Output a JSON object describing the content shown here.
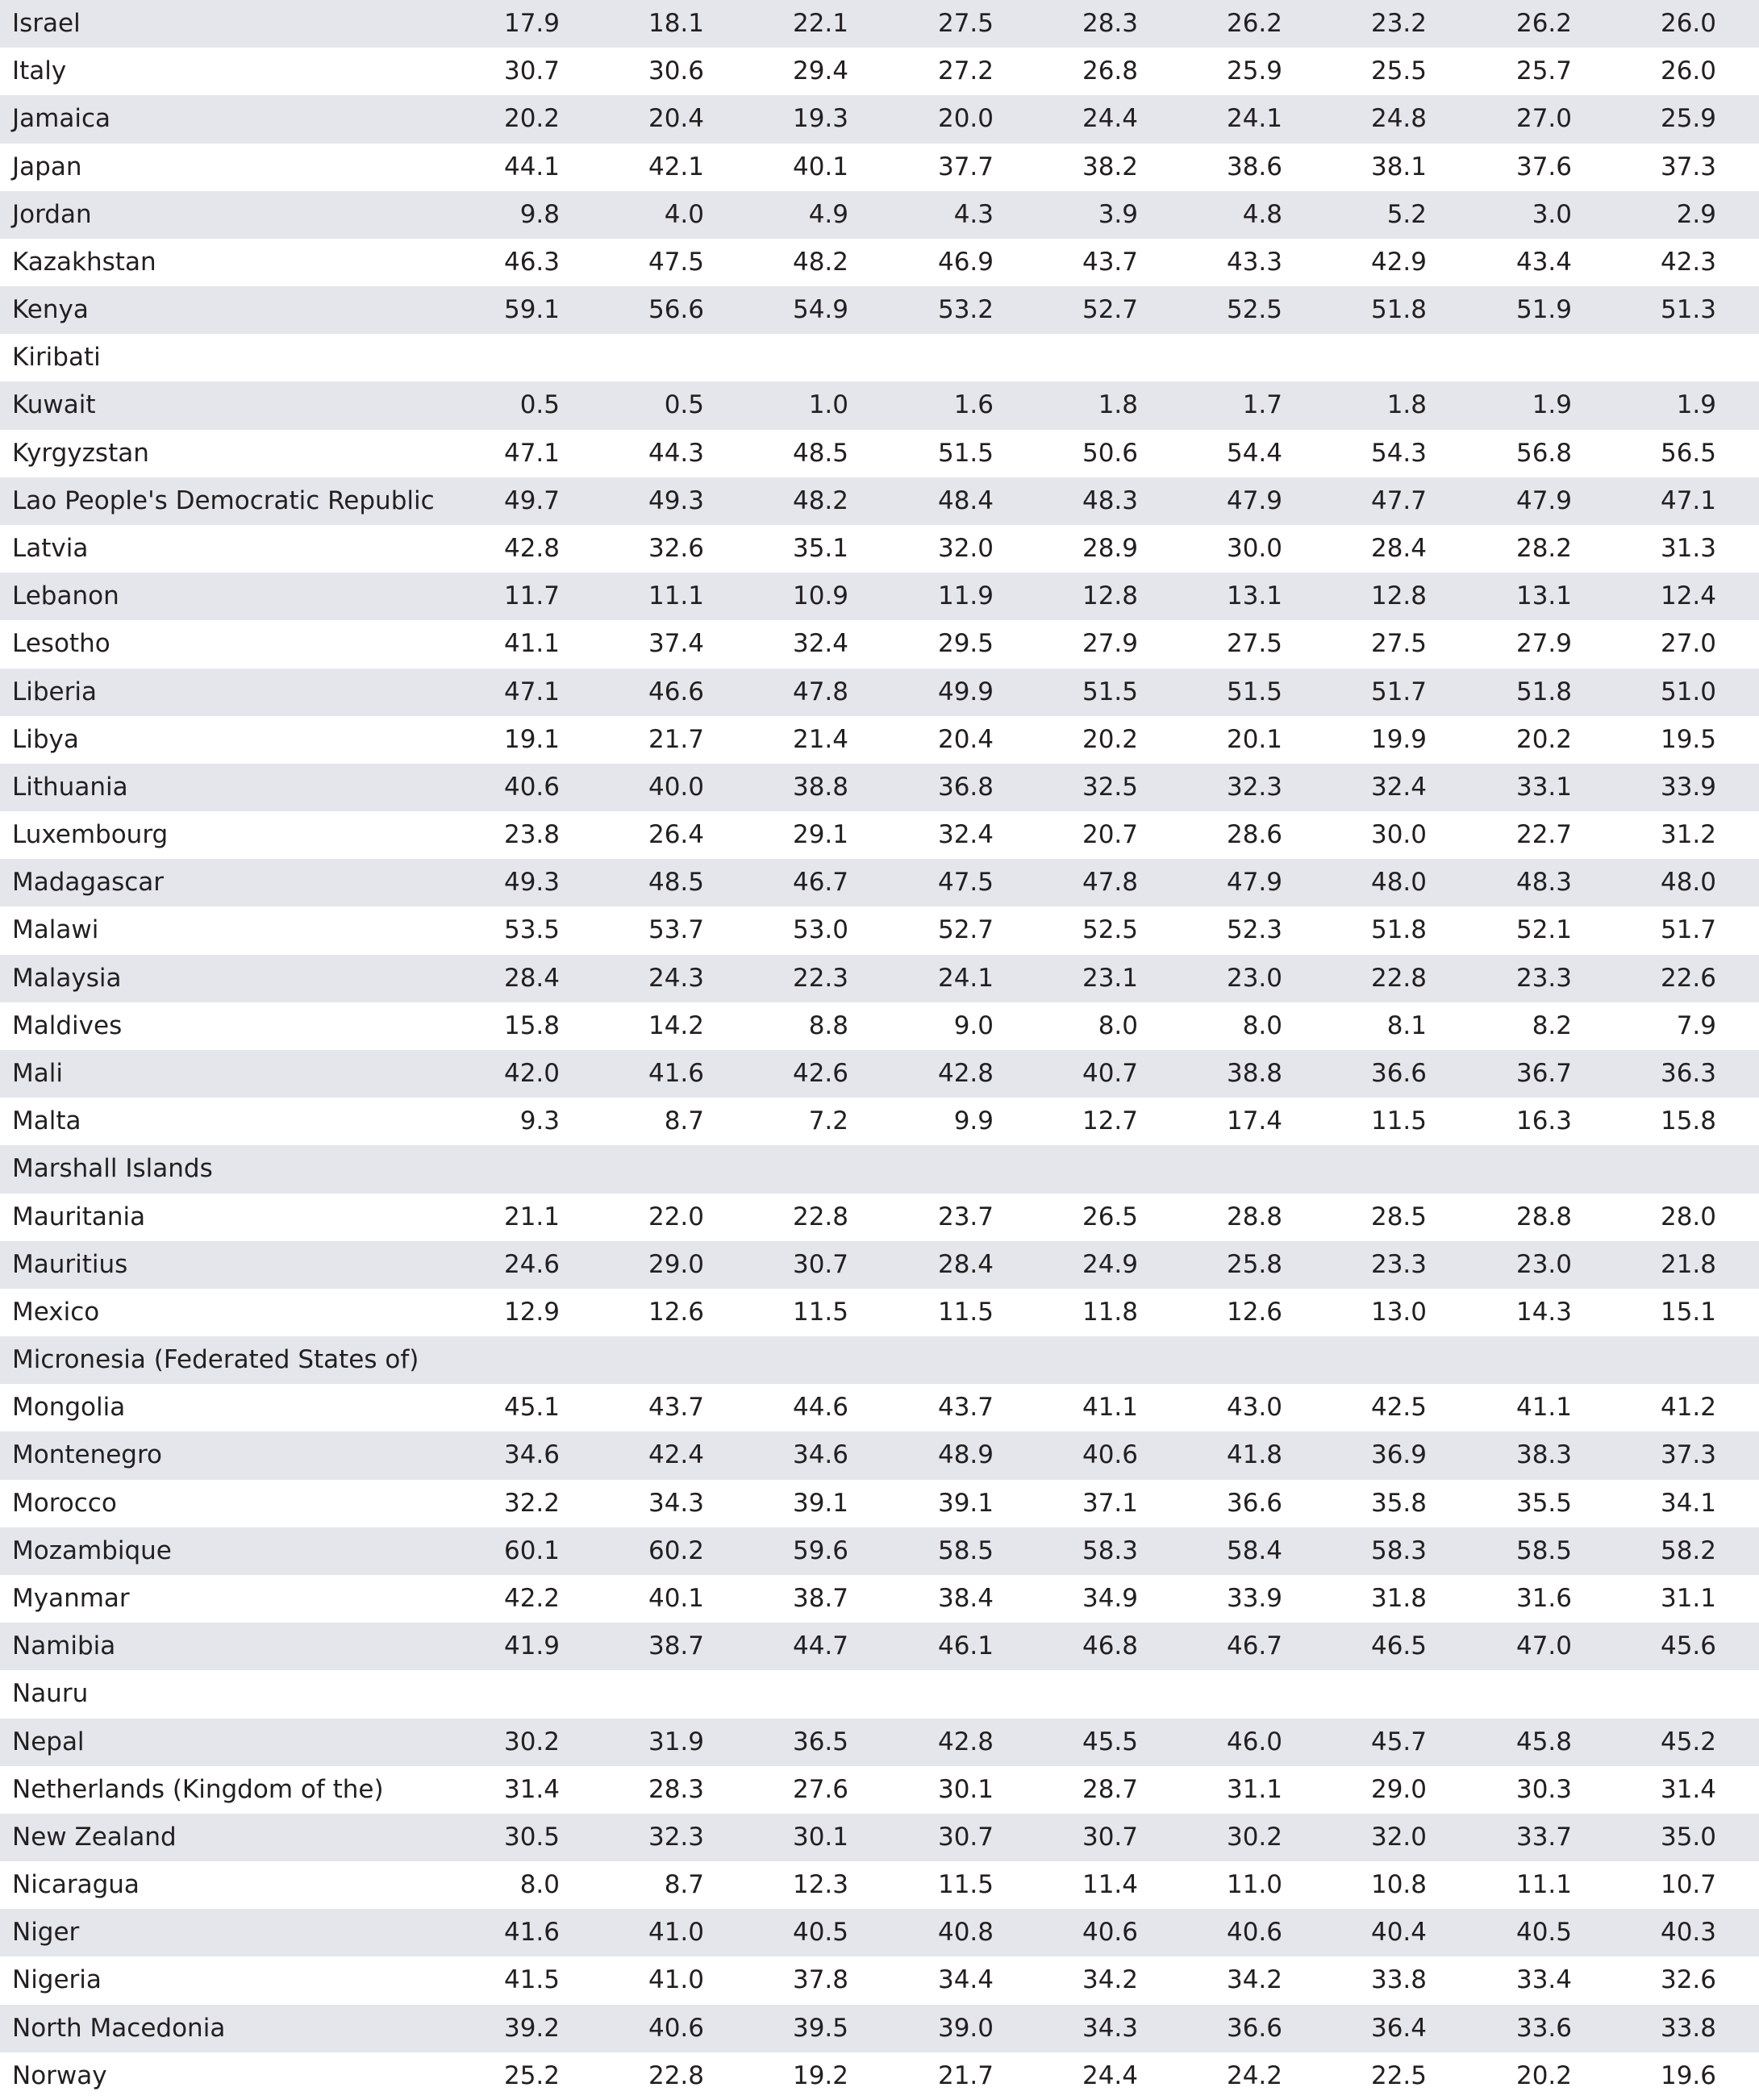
{
  "table": {
    "rows": [
      [
        "Israel",
        "17.9",
        "18.1",
        "22.1",
        "27.5",
        "28.3",
        "26.2",
        "23.2",
        "26.2",
        "26.0"
      ],
      [
        "Italy",
        "30.7",
        "30.6",
        "29.4",
        "27.2",
        "26.8",
        "25.9",
        "25.5",
        "25.7",
        "26.0"
      ],
      [
        "Jamaica",
        "20.2",
        "20.4",
        "19.3",
        "20.0",
        "24.4",
        "24.1",
        "24.8",
        "27.0",
        "25.9"
      ],
      [
        "Japan",
        "44.1",
        "42.1",
        "40.1",
        "37.7",
        "38.2",
        "38.6",
        "38.1",
        "37.6",
        "37.3"
      ],
      [
        "Jordan",
        "9.8",
        "4.0",
        "4.9",
        "4.3",
        "3.9",
        "4.8",
        "5.2",
        "3.0",
        "2.9"
      ],
      [
        "Kazakhstan",
        "46.3",
        "47.5",
        "48.2",
        "46.9",
        "43.7",
        "43.3",
        "42.9",
        "43.4",
        "42.3"
      ],
      [
        "Kenya",
        "59.1",
        "56.6",
        "54.9",
        "53.2",
        "52.7",
        "52.5",
        "51.8",
        "51.9",
        "51.3"
      ],
      [
        "Kiribati"
      ],
      [
        "Kuwait",
        "0.5",
        "0.5",
        "1.0",
        "1.6",
        "1.8",
        "1.7",
        "1.8",
        "1.9",
        "1.9"
      ],
      [
        "Kyrgyzstan",
        "47.1",
        "44.3",
        "48.5",
        "51.5",
        "50.6",
        "54.4",
        "54.3",
        "56.8",
        "56.5"
      ],
      [
        "Lao People's Democratic Republic",
        "49.7",
        "49.3",
        "48.2",
        "48.4",
        "48.3",
        "47.9",
        "47.7",
        "47.9",
        "47.1"
      ],
      [
        "Latvia",
        "42.8",
        "32.6",
        "35.1",
        "32.0",
        "28.9",
        "30.0",
        "28.4",
        "28.2",
        "31.3"
      ],
      [
        "Lebanon",
        "11.7",
        "11.1",
        "10.9",
        "11.9",
        "12.8",
        "13.1",
        "12.8",
        "13.1",
        "12.4"
      ],
      [
        "Lesotho",
        "41.1",
        "37.4",
        "32.4",
        "29.5",
        "27.9",
        "27.5",
        "27.5",
        "27.9",
        "27.0"
      ],
      [
        "Liberia",
        "47.1",
        "46.6",
        "47.8",
        "49.9",
        "51.5",
        "51.5",
        "51.7",
        "51.8",
        "51.0"
      ],
      [
        "Libya",
        "19.1",
        "21.7",
        "21.4",
        "20.4",
        "20.2",
        "20.1",
        "19.9",
        "20.2",
        "19.5"
      ],
      [
        "Lithuania",
        "40.6",
        "40.0",
        "38.8",
        "36.8",
        "32.5",
        "32.3",
        "32.4",
        "33.1",
        "33.9"
      ],
      [
        "Luxembourg",
        "23.8",
        "26.4",
        "29.1",
        "32.4",
        "20.7",
        "28.6",
        "30.0",
        "22.7",
        "31.2"
      ],
      [
        "Madagascar",
        "49.3",
        "48.5",
        "46.7",
        "47.5",
        "47.8",
        "47.9",
        "48.0",
        "48.3",
        "48.0"
      ],
      [
        "Malawi",
        "53.5",
        "53.7",
        "53.0",
        "52.7",
        "52.5",
        "52.3",
        "51.8",
        "52.1",
        "51.7"
      ],
      [
        "Malaysia",
        "28.4",
        "24.3",
        "22.3",
        "24.1",
        "23.1",
        "23.0",
        "22.8",
        "23.3",
        "22.6"
      ],
      [
        "Maldives",
        "15.8",
        "14.2",
        "8.8",
        "9.0",
        "8.0",
        "8.0",
        "8.1",
        "8.2",
        "7.9"
      ],
      [
        "Mali",
        "42.0",
        "41.6",
        "42.6",
        "42.8",
        "40.7",
        "38.8",
        "36.6",
        "36.7",
        "36.3"
      ],
      [
        "Malta",
        "9.3",
        "8.7",
        "7.2",
        "9.9",
        "12.7",
        "17.4",
        "11.5",
        "16.3",
        "15.8"
      ],
      [
        "Marshall Islands"
      ],
      [
        "Mauritania",
        "21.1",
        "22.0",
        "22.8",
        "23.7",
        "26.5",
        "28.8",
        "28.5",
        "28.8",
        "28.0"
      ],
      [
        "Mauritius",
        "24.6",
        "29.0",
        "30.7",
        "28.4",
        "24.9",
        "25.8",
        "23.3",
        "23.0",
        "21.8"
      ],
      [
        "Mexico",
        "12.9",
        "12.6",
        "11.5",
        "11.5",
        "11.8",
        "12.6",
        "13.0",
        "14.3",
        "15.1"
      ],
      [
        "Micronesia (Federated States of)"
      ],
      [
        "Mongolia",
        "45.1",
        "43.7",
        "44.6",
        "43.7",
        "41.1",
        "43.0",
        "42.5",
        "41.1",
        "41.2"
      ],
      [
        "Montenegro",
        "34.6",
        "42.4",
        "34.6",
        "48.9",
        "40.6",
        "41.8",
        "36.9",
        "38.3",
        "37.3"
      ],
      [
        "Morocco",
        "32.2",
        "34.3",
        "39.1",
        "39.1",
        "37.1",
        "36.6",
        "35.8",
        "35.5",
        "34.1"
      ],
      [
        "Mozambique",
        "60.1",
        "60.2",
        "59.6",
        "58.5",
        "58.3",
        "58.4",
        "58.3",
        "58.5",
        "58.2"
      ],
      [
        "Myanmar",
        "42.2",
        "40.1",
        "38.7",
        "38.4",
        "34.9",
        "33.9",
        "31.8",
        "31.6",
        "31.1"
      ],
      [
        "Namibia",
        "41.9",
        "38.7",
        "44.7",
        "46.1",
        "46.8",
        "46.7",
        "46.5",
        "47.0",
        "45.6"
      ],
      [
        "Nauru"
      ],
      [
        "Nepal",
        "30.2",
        "31.9",
        "36.5",
        "42.8",
        "45.5",
        "46.0",
        "45.7",
        "45.8",
        "45.2"
      ],
      [
        "Netherlands (Kingdom of the)",
        "31.4",
        "28.3",
        "27.6",
        "30.1",
        "28.7",
        "31.1",
        "29.0",
        "30.3",
        "31.4"
      ],
      [
        "New Zealand",
        "30.5",
        "32.3",
        "30.1",
        "30.7",
        "30.7",
        "30.2",
        "32.0",
        "33.7",
        "35.0"
      ],
      [
        "Nicaragua",
        "8.0",
        "8.7",
        "12.3",
        "11.5",
        "11.4",
        "11.0",
        "10.8",
        "11.1",
        "10.7"
      ],
      [
        "Niger",
        "41.6",
        "41.0",
        "40.5",
        "40.8",
        "40.6",
        "40.6",
        "40.4",
        "40.5",
        "40.3"
      ],
      [
        "Nigeria",
        "41.5",
        "41.0",
        "37.8",
        "34.4",
        "34.2",
        "34.2",
        "33.8",
        "33.4",
        "32.6"
      ],
      [
        "North Macedonia",
        "39.2",
        "40.6",
        "39.5",
        "39.0",
        "34.3",
        "36.6",
        "36.4",
        "33.6",
        "33.8"
      ],
      [
        "Norway",
        "25.2",
        "22.8",
        "19.2",
        "21.7",
        "24.4",
        "24.2",
        "22.5",
        "20.2",
        "19.6"
      ]
    ]
  }
}
